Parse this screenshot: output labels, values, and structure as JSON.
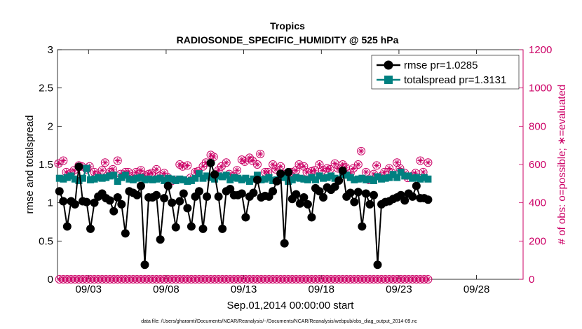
{
  "colors": {
    "rmse": "#000000",
    "spread": "#008080",
    "obs": "#cc0066",
    "axis": "#000000"
  },
  "chart_data": {
    "type": "line",
    "title": "Tropics",
    "subtitle": "RADIOSONDE_SPECIFIC_HUMIDITY @ 525 hPa",
    "xlabel": "Sep.01,2014 00:00:00 start",
    "ylabel": "rmse and totalspread",
    "y2label": "# of obs: o=possible; ∗=evaluated",
    "ylim": [
      0,
      3
    ],
    "y2lim": [
      0,
      1200
    ],
    "xlim_days": [
      0,
      30
    ],
    "yticks": [
      "0",
      "0.5",
      "1",
      "1.5",
      "2",
      "2.5",
      "3"
    ],
    "y2ticks": [
      "0",
      "200",
      "400",
      "600",
      "800",
      "1000",
      "1200"
    ],
    "xticks": [
      {
        "day": 2,
        "label": "09/03"
      },
      {
        "day": 7,
        "label": "09/08"
      },
      {
        "day": 12,
        "label": "09/13"
      },
      {
        "day": 17,
        "label": "09/18"
      },
      {
        "day": 22,
        "label": "09/23"
      },
      {
        "day": 27,
        "label": "09/28"
      }
    ],
    "time_step_days": 0.25,
    "time_start_day": 0.125,
    "legend_position": "top-right",
    "series": [
      {
        "name": "rmse",
        "label": "rmse pr=1.0285",
        "marker": "circle",
        "values": [
          1.15,
          1.02,
          0.69,
          1.02,
          0.98,
          1.47,
          1.02,
          1.01,
          0.66,
          1.0,
          1.08,
          1.12,
          1.06,
          1.03,
          0.89,
          1.07,
          0.98,
          0.6,
          1.15,
          1.13,
          1.1,
          1.22,
          0.19,
          1.07,
          1.07,
          1.1,
          0.52,
          1.06,
          1.22,
          1.0,
          0.68,
          1.02,
          1.12,
          0.93,
          0.69,
          1.08,
          1.15,
          0.66,
          1.08,
          1.52,
          1.37,
          1.08,
          0.66,
          1.15,
          1.18,
          1.1,
          1.1,
          1.12,
          0.81,
          1.08,
          1.13,
          1.3,
          1.07,
          1.09,
          1.08,
          1.15,
          1.28,
          1.38,
          0.47,
          1.4,
          1.05,
          1.11,
          0.99,
          1.07,
          0.98,
          0.81,
          1.19,
          1.15,
          1.07,
          1.2,
          1.17,
          1.21,
          1.29,
          1.42,
          1.08,
          1.13,
          1.01,
          1.14,
          0.69,
          1.12,
          0.98,
          1.1,
          0.19,
          0.98,
          1.01,
          1.02,
          1.05,
          1.07,
          1.1,
          1.03,
          1.12,
          1.08,
          1.22,
          1.06,
          1.06,
          1.04
        ]
      },
      {
        "name": "totalspread",
        "label": "totalspread pr=1.3131",
        "marker": "square",
        "values": [
          1.32,
          1.31,
          1.33,
          1.35,
          1.31,
          1.29,
          1.32,
          1.45,
          1.3,
          1.31,
          1.33,
          1.32,
          1.33,
          1.35,
          1.36,
          1.28,
          1.33,
          1.36,
          1.31,
          1.3,
          1.32,
          1.33,
          1.3,
          1.31,
          1.3,
          1.31,
          1.32,
          1.29,
          1.32,
          1.31,
          1.29,
          1.31,
          1.3,
          1.28,
          1.29,
          1.32,
          1.38,
          1.32,
          1.35,
          1.33,
          1.31,
          1.35,
          1.34,
          1.36,
          1.3,
          1.33,
          1.32,
          1.3,
          1.32,
          1.28,
          1.31,
          1.36,
          1.3,
          1.31,
          1.33,
          1.29,
          1.3,
          1.34,
          1.33,
          1.28,
          1.3,
          1.33,
          1.32,
          1.31,
          1.3,
          1.33,
          1.3,
          1.35,
          1.32,
          1.33,
          1.35,
          1.32,
          1.3,
          1.37,
          1.36,
          1.33,
          1.3,
          1.31,
          1.32,
          1.3,
          1.31,
          1.29,
          1.34,
          1.31,
          1.32,
          1.33,
          1.37,
          1.33,
          1.4,
          1.35,
          1.35,
          1.32,
          1.33,
          1.31,
          1.33,
          1.31
        ]
      }
    ],
    "obs_possible": [
      605,
      620,
      560,
      555,
      570,
      595,
      590,
      575,
      590,
      560,
      545,
      570,
      610,
      560,
      575,
      620,
      550,
      560,
      560,
      540,
      560,
      570,
      545,
      550,
      555,
      575,
      540,
      555,
      535,
      515,
      520,
      600,
      590,
      595,
      530,
      560,
      565,
      590,
      610,
      650,
      640,
      570,
      590,
      610,
      550,
      540,
      570,
      625,
      615,
      635,
      620,
      600,
      655,
      560,
      560,
      600,
      575,
      590,
      550,
      540,
      560,
      570,
      600,
      590,
      560,
      565,
      570,
      600,
      570,
      580,
      575,
      605,
      580,
      600,
      585,
      555,
      580,
      600,
      670,
      560,
      520,
      550,
      595,
      540,
      560,
      580,
      555,
      610,
      580,
      555,
      530,
      540,
      555,
      620,
      560,
      610
    ],
    "obs_evaluated": [
      605,
      620,
      560,
      555,
      570,
      595,
      590,
      575,
      590,
      560,
      545,
      570,
      610,
      560,
      575,
      620,
      550,
      560,
      560,
      540,
      560,
      570,
      545,
      550,
      555,
      575,
      540,
      555,
      535,
      515,
      520,
      600,
      590,
      595,
      530,
      560,
      565,
      590,
      610,
      650,
      640,
      570,
      590,
      610,
      550,
      540,
      570,
      625,
      615,
      635,
      620,
      600,
      655,
      560,
      560,
      600,
      575,
      590,
      550,
      540,
      560,
      570,
      600,
      590,
      560,
      565,
      570,
      600,
      570,
      580,
      575,
      605,
      580,
      600,
      585,
      555,
      580,
      600,
      670,
      560,
      520,
      550,
      595,
      540,
      560,
      580,
      555,
      610,
      580,
      555,
      530,
      540,
      555,
      620,
      560,
      610
    ],
    "obs_zero_possible": 0,
    "obs_zero_evaluated": 0
  },
  "footnote": "data file: /Users/gharamti/Documents/NCAR/Reanalysis/~/Documents/NCAR/Reanalysis/webpub/obs_diag_output_2014-09.nc"
}
